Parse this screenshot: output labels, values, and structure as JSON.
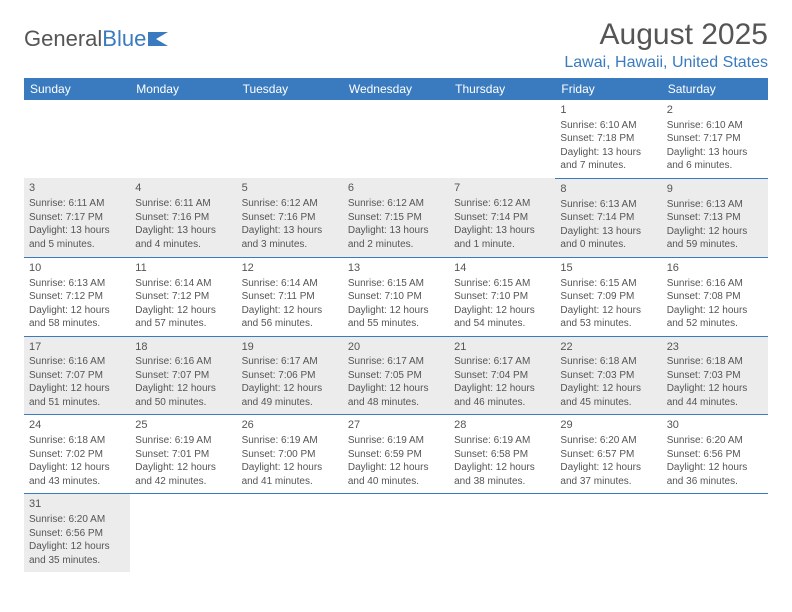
{
  "brand": {
    "part1": "General",
    "part2": "Blue"
  },
  "title": "August 2025",
  "location": "Lawai, Hawaii, United States",
  "colors": {
    "header_bg": "#3a7bbf",
    "header_text": "#ffffff",
    "text": "#555555",
    "alt_row_bg": "#ececec",
    "row_border": "#3a7bbf"
  },
  "day_headers": [
    "Sunday",
    "Monday",
    "Tuesday",
    "Wednesday",
    "Thursday",
    "Friday",
    "Saturday"
  ],
  "weeks": [
    [
      null,
      null,
      null,
      null,
      null,
      {
        "n": "1",
        "sr": "Sunrise: 6:10 AM",
        "ss": "Sunset: 7:18 PM",
        "d1": "Daylight: 13 hours",
        "d2": "and 7 minutes."
      },
      {
        "n": "2",
        "sr": "Sunrise: 6:10 AM",
        "ss": "Sunset: 7:17 PM",
        "d1": "Daylight: 13 hours",
        "d2": "and 6 minutes."
      }
    ],
    [
      {
        "n": "3",
        "sr": "Sunrise: 6:11 AM",
        "ss": "Sunset: 7:17 PM",
        "d1": "Daylight: 13 hours",
        "d2": "and 5 minutes."
      },
      {
        "n": "4",
        "sr": "Sunrise: 6:11 AM",
        "ss": "Sunset: 7:16 PM",
        "d1": "Daylight: 13 hours",
        "d2": "and 4 minutes."
      },
      {
        "n": "5",
        "sr": "Sunrise: 6:12 AM",
        "ss": "Sunset: 7:16 PM",
        "d1": "Daylight: 13 hours",
        "d2": "and 3 minutes."
      },
      {
        "n": "6",
        "sr": "Sunrise: 6:12 AM",
        "ss": "Sunset: 7:15 PM",
        "d1": "Daylight: 13 hours",
        "d2": "and 2 minutes."
      },
      {
        "n": "7",
        "sr": "Sunrise: 6:12 AM",
        "ss": "Sunset: 7:14 PM",
        "d1": "Daylight: 13 hours",
        "d2": "and 1 minute."
      },
      {
        "n": "8",
        "sr": "Sunrise: 6:13 AM",
        "ss": "Sunset: 7:14 PM",
        "d1": "Daylight: 13 hours",
        "d2": "and 0 minutes."
      },
      {
        "n": "9",
        "sr": "Sunrise: 6:13 AM",
        "ss": "Sunset: 7:13 PM",
        "d1": "Daylight: 12 hours",
        "d2": "and 59 minutes."
      }
    ],
    [
      {
        "n": "10",
        "sr": "Sunrise: 6:13 AM",
        "ss": "Sunset: 7:12 PM",
        "d1": "Daylight: 12 hours",
        "d2": "and 58 minutes."
      },
      {
        "n": "11",
        "sr": "Sunrise: 6:14 AM",
        "ss": "Sunset: 7:12 PM",
        "d1": "Daylight: 12 hours",
        "d2": "and 57 minutes."
      },
      {
        "n": "12",
        "sr": "Sunrise: 6:14 AM",
        "ss": "Sunset: 7:11 PM",
        "d1": "Daylight: 12 hours",
        "d2": "and 56 minutes."
      },
      {
        "n": "13",
        "sr": "Sunrise: 6:15 AM",
        "ss": "Sunset: 7:10 PM",
        "d1": "Daylight: 12 hours",
        "d2": "and 55 minutes."
      },
      {
        "n": "14",
        "sr": "Sunrise: 6:15 AM",
        "ss": "Sunset: 7:10 PM",
        "d1": "Daylight: 12 hours",
        "d2": "and 54 minutes."
      },
      {
        "n": "15",
        "sr": "Sunrise: 6:15 AM",
        "ss": "Sunset: 7:09 PM",
        "d1": "Daylight: 12 hours",
        "d2": "and 53 minutes."
      },
      {
        "n": "16",
        "sr": "Sunrise: 6:16 AM",
        "ss": "Sunset: 7:08 PM",
        "d1": "Daylight: 12 hours",
        "d2": "and 52 minutes."
      }
    ],
    [
      {
        "n": "17",
        "sr": "Sunrise: 6:16 AM",
        "ss": "Sunset: 7:07 PM",
        "d1": "Daylight: 12 hours",
        "d2": "and 51 minutes."
      },
      {
        "n": "18",
        "sr": "Sunrise: 6:16 AM",
        "ss": "Sunset: 7:07 PM",
        "d1": "Daylight: 12 hours",
        "d2": "and 50 minutes."
      },
      {
        "n": "19",
        "sr": "Sunrise: 6:17 AM",
        "ss": "Sunset: 7:06 PM",
        "d1": "Daylight: 12 hours",
        "d2": "and 49 minutes."
      },
      {
        "n": "20",
        "sr": "Sunrise: 6:17 AM",
        "ss": "Sunset: 7:05 PM",
        "d1": "Daylight: 12 hours",
        "d2": "and 48 minutes."
      },
      {
        "n": "21",
        "sr": "Sunrise: 6:17 AM",
        "ss": "Sunset: 7:04 PM",
        "d1": "Daylight: 12 hours",
        "d2": "and 46 minutes."
      },
      {
        "n": "22",
        "sr": "Sunrise: 6:18 AM",
        "ss": "Sunset: 7:03 PM",
        "d1": "Daylight: 12 hours",
        "d2": "and 45 minutes."
      },
      {
        "n": "23",
        "sr": "Sunrise: 6:18 AM",
        "ss": "Sunset: 7:03 PM",
        "d1": "Daylight: 12 hours",
        "d2": "and 44 minutes."
      }
    ],
    [
      {
        "n": "24",
        "sr": "Sunrise: 6:18 AM",
        "ss": "Sunset: 7:02 PM",
        "d1": "Daylight: 12 hours",
        "d2": "and 43 minutes."
      },
      {
        "n": "25",
        "sr": "Sunrise: 6:19 AM",
        "ss": "Sunset: 7:01 PM",
        "d1": "Daylight: 12 hours",
        "d2": "and 42 minutes."
      },
      {
        "n": "26",
        "sr": "Sunrise: 6:19 AM",
        "ss": "Sunset: 7:00 PM",
        "d1": "Daylight: 12 hours",
        "d2": "and 41 minutes."
      },
      {
        "n": "27",
        "sr": "Sunrise: 6:19 AM",
        "ss": "Sunset: 6:59 PM",
        "d1": "Daylight: 12 hours",
        "d2": "and 40 minutes."
      },
      {
        "n": "28",
        "sr": "Sunrise: 6:19 AM",
        "ss": "Sunset: 6:58 PM",
        "d1": "Daylight: 12 hours",
        "d2": "and 38 minutes."
      },
      {
        "n": "29",
        "sr": "Sunrise: 6:20 AM",
        "ss": "Sunset: 6:57 PM",
        "d1": "Daylight: 12 hours",
        "d2": "and 37 minutes."
      },
      {
        "n": "30",
        "sr": "Sunrise: 6:20 AM",
        "ss": "Sunset: 6:56 PM",
        "d1": "Daylight: 12 hours",
        "d2": "and 36 minutes."
      }
    ],
    [
      {
        "n": "31",
        "sr": "Sunrise: 6:20 AM",
        "ss": "Sunset: 6:56 PM",
        "d1": "Daylight: 12 hours",
        "d2": "and 35 minutes."
      },
      null,
      null,
      null,
      null,
      null,
      null
    ]
  ]
}
